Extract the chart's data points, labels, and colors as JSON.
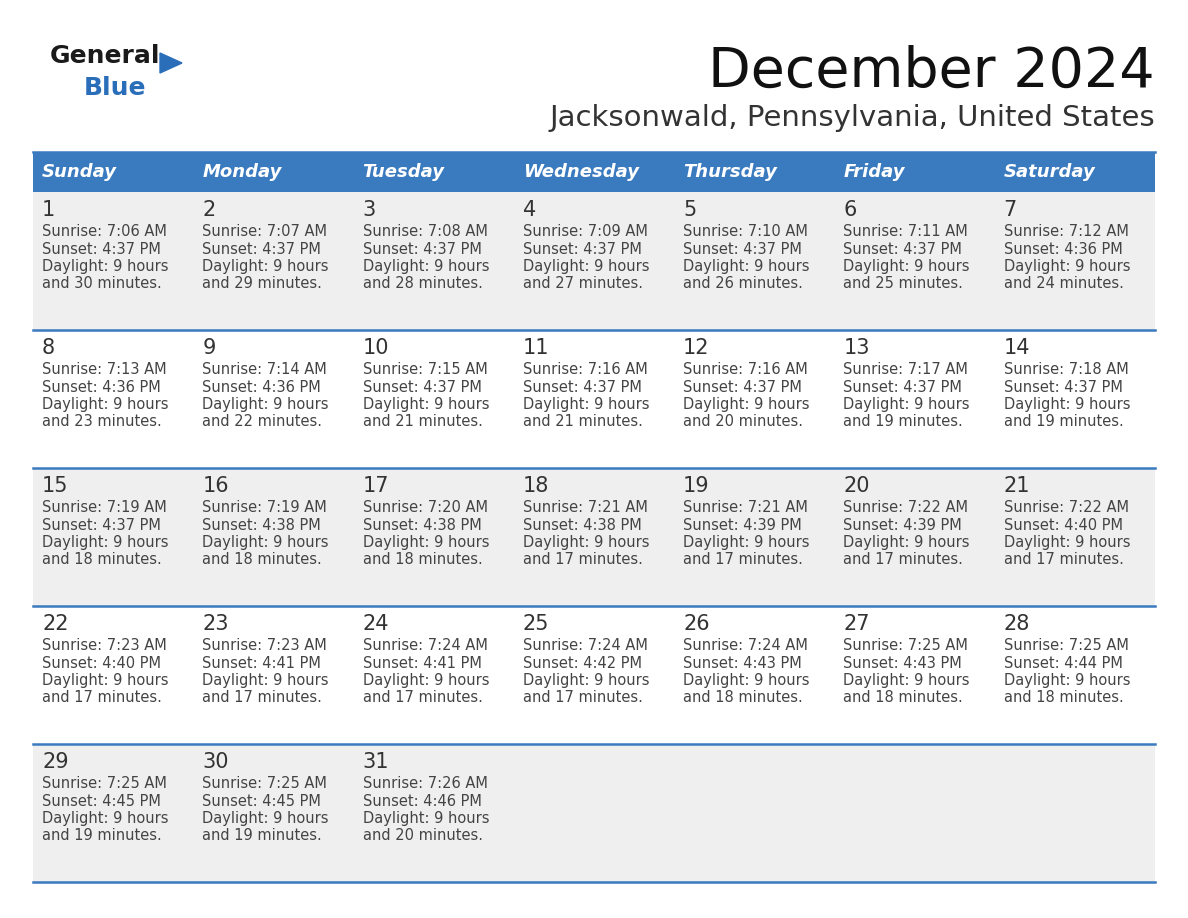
{
  "title": "December 2024",
  "subtitle": "Jacksonwald, Pennsylvania, United States",
  "header_color": "#3a7abf",
  "header_text_color": "#ffffff",
  "row_bg_odd": "#efefef",
  "row_bg_even": "#ffffff",
  "border_color": "#3a7abf",
  "text_color": "#444444",
  "day_num_color": "#333333",
  "days_of_week": [
    "Sunday",
    "Monday",
    "Tuesday",
    "Wednesday",
    "Thursday",
    "Friday",
    "Saturday"
  ],
  "weeks": [
    [
      {
        "day": 1,
        "sunrise": "7:06 AM",
        "sunset": "4:37 PM",
        "daylight_h": "9 hours",
        "daylight_m": "and 30 minutes."
      },
      {
        "day": 2,
        "sunrise": "7:07 AM",
        "sunset": "4:37 PM",
        "daylight_h": "9 hours",
        "daylight_m": "and 29 minutes."
      },
      {
        "day": 3,
        "sunrise": "7:08 AM",
        "sunset": "4:37 PM",
        "daylight_h": "9 hours",
        "daylight_m": "and 28 minutes."
      },
      {
        "day": 4,
        "sunrise": "7:09 AM",
        "sunset": "4:37 PM",
        "daylight_h": "9 hours",
        "daylight_m": "and 27 minutes."
      },
      {
        "day": 5,
        "sunrise": "7:10 AM",
        "sunset": "4:37 PM",
        "daylight_h": "9 hours",
        "daylight_m": "and 26 minutes."
      },
      {
        "day": 6,
        "sunrise": "7:11 AM",
        "sunset": "4:37 PM",
        "daylight_h": "9 hours",
        "daylight_m": "and 25 minutes."
      },
      {
        "day": 7,
        "sunrise": "7:12 AM",
        "sunset": "4:36 PM",
        "daylight_h": "9 hours",
        "daylight_m": "and 24 minutes."
      }
    ],
    [
      {
        "day": 8,
        "sunrise": "7:13 AM",
        "sunset": "4:36 PM",
        "daylight_h": "9 hours",
        "daylight_m": "and 23 minutes."
      },
      {
        "day": 9,
        "sunrise": "7:14 AM",
        "sunset": "4:36 PM",
        "daylight_h": "9 hours",
        "daylight_m": "and 22 minutes."
      },
      {
        "day": 10,
        "sunrise": "7:15 AM",
        "sunset": "4:37 PM",
        "daylight_h": "9 hours",
        "daylight_m": "and 21 minutes."
      },
      {
        "day": 11,
        "sunrise": "7:16 AM",
        "sunset": "4:37 PM",
        "daylight_h": "9 hours",
        "daylight_m": "and 21 minutes."
      },
      {
        "day": 12,
        "sunrise": "7:16 AM",
        "sunset": "4:37 PM",
        "daylight_h": "9 hours",
        "daylight_m": "and 20 minutes."
      },
      {
        "day": 13,
        "sunrise": "7:17 AM",
        "sunset": "4:37 PM",
        "daylight_h": "9 hours",
        "daylight_m": "and 19 minutes."
      },
      {
        "day": 14,
        "sunrise": "7:18 AM",
        "sunset": "4:37 PM",
        "daylight_h": "9 hours",
        "daylight_m": "and 19 minutes."
      }
    ],
    [
      {
        "day": 15,
        "sunrise": "7:19 AM",
        "sunset": "4:37 PM",
        "daylight_h": "9 hours",
        "daylight_m": "and 18 minutes."
      },
      {
        "day": 16,
        "sunrise": "7:19 AM",
        "sunset": "4:38 PM",
        "daylight_h": "9 hours",
        "daylight_m": "and 18 minutes."
      },
      {
        "day": 17,
        "sunrise": "7:20 AM",
        "sunset": "4:38 PM",
        "daylight_h": "9 hours",
        "daylight_m": "and 18 minutes."
      },
      {
        "day": 18,
        "sunrise": "7:21 AM",
        "sunset": "4:38 PM",
        "daylight_h": "9 hours",
        "daylight_m": "and 17 minutes."
      },
      {
        "day": 19,
        "sunrise": "7:21 AM",
        "sunset": "4:39 PM",
        "daylight_h": "9 hours",
        "daylight_m": "and 17 minutes."
      },
      {
        "day": 20,
        "sunrise": "7:22 AM",
        "sunset": "4:39 PM",
        "daylight_h": "9 hours",
        "daylight_m": "and 17 minutes."
      },
      {
        "day": 21,
        "sunrise": "7:22 AM",
        "sunset": "4:40 PM",
        "daylight_h": "9 hours",
        "daylight_m": "and 17 minutes."
      }
    ],
    [
      {
        "day": 22,
        "sunrise": "7:23 AM",
        "sunset": "4:40 PM",
        "daylight_h": "9 hours",
        "daylight_m": "and 17 minutes."
      },
      {
        "day": 23,
        "sunrise": "7:23 AM",
        "sunset": "4:41 PM",
        "daylight_h": "9 hours",
        "daylight_m": "and 17 minutes."
      },
      {
        "day": 24,
        "sunrise": "7:24 AM",
        "sunset": "4:41 PM",
        "daylight_h": "9 hours",
        "daylight_m": "and 17 minutes."
      },
      {
        "day": 25,
        "sunrise": "7:24 AM",
        "sunset": "4:42 PM",
        "daylight_h": "9 hours",
        "daylight_m": "and 17 minutes."
      },
      {
        "day": 26,
        "sunrise": "7:24 AM",
        "sunset": "4:43 PM",
        "daylight_h": "9 hours",
        "daylight_m": "and 18 minutes."
      },
      {
        "day": 27,
        "sunrise": "7:25 AM",
        "sunset": "4:43 PM",
        "daylight_h": "9 hours",
        "daylight_m": "and 18 minutes."
      },
      {
        "day": 28,
        "sunrise": "7:25 AM",
        "sunset": "4:44 PM",
        "daylight_h": "9 hours",
        "daylight_m": "and 18 minutes."
      }
    ],
    [
      {
        "day": 29,
        "sunrise": "7:25 AM",
        "sunset": "4:45 PM",
        "daylight_h": "9 hours",
        "daylight_m": "and 19 minutes."
      },
      {
        "day": 30,
        "sunrise": "7:25 AM",
        "sunset": "4:45 PM",
        "daylight_h": "9 hours",
        "daylight_m": "and 19 minutes."
      },
      {
        "day": 31,
        "sunrise": "7:26 AM",
        "sunset": "4:46 PM",
        "daylight_h": "9 hours",
        "daylight_m": "and 20 minutes."
      },
      null,
      null,
      null,
      null
    ]
  ],
  "logo_color_general": "#1a1a1a",
  "logo_color_blue": "#2a6eba",
  "fig_width": 11.88,
  "fig_height": 9.18,
  "dpi": 100
}
